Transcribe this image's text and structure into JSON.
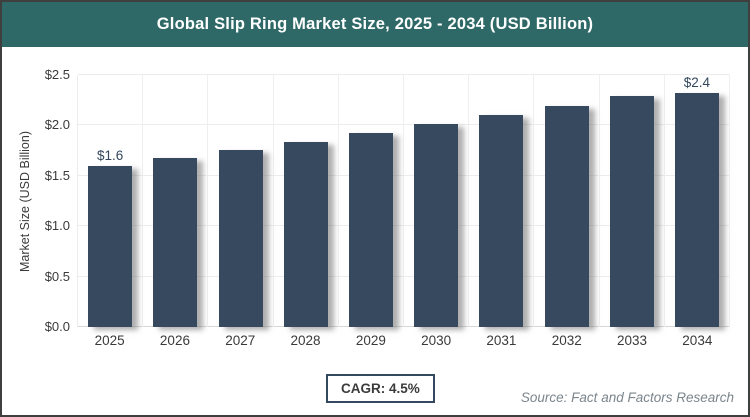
{
  "header": {
    "title": "Global Slip Ring Market Size, 2025 - 2034 (USD Billion)",
    "background_color": "#2f6967"
  },
  "chart_data": {
    "type": "bar",
    "title": "Global Slip Ring Market Size, 2025 - 2034 (USD Billion)",
    "categories": [
      "2025",
      "2026",
      "2027",
      "2028",
      "2029",
      "2030",
      "2031",
      "2032",
      "2033",
      "2034"
    ],
    "values": [
      1.6,
      1.68,
      1.76,
      1.84,
      1.92,
      2.01,
      2.1,
      2.19,
      2.29,
      2.4
    ],
    "bar_labels": {
      "2025": "$1.6",
      "2034": "$2.4"
    },
    "xlabel": "",
    "ylabel": "Market Size (USD Billion)",
    "ylim": [
      0,
      2.5
    ],
    "yticks": [
      {
        "value": 0.0,
        "label": "$0.0"
      },
      {
        "value": 0.5,
        "label": "$0.5"
      },
      {
        "value": 1.0,
        "label": "$1.0"
      },
      {
        "value": 1.5,
        "label": "$1.5"
      },
      {
        "value": 2.0,
        "label": "$2.0"
      },
      {
        "value": 2.5,
        "label": "$2.5"
      }
    ],
    "grid": true,
    "legend": false,
    "bar_color": "#36495f",
    "label_color": "#33475c"
  },
  "footer": {
    "cagr_label": "CAGR: 4.5%",
    "source": "Source: Fact and Factors Research"
  }
}
